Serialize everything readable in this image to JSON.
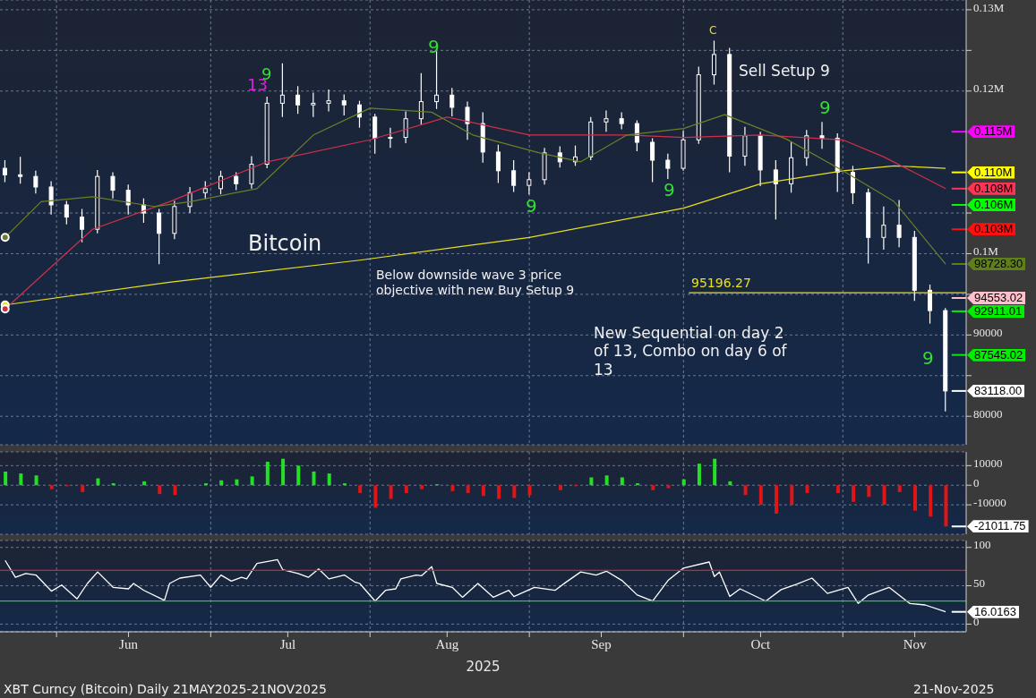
{
  "chart_data": [
    {
      "type": "candlestick",
      "color": "#ffffff",
      "xlim": [
        "2025-05-21",
        "2025-11-25"
      ],
      "ylim": [
        76500,
        131200
      ],
      "xticks": [
        {
          "value": "2025-06-01",
          "label": null
        },
        {
          "value": "2025-07-01",
          "label": null
        },
        {
          "value": "2025-08-01",
          "label": null
        },
        {
          "value": "2025-09-01",
          "label": null
        },
        {
          "value": "2025-10-01",
          "label": null
        },
        {
          "value": "2025-11-01",
          "label": null
        }
      ],
      "yticks": [
        80000,
        {
          "value": 85000,
          "label": null
        },
        90000,
        {
          "value": 95000,
          "label": null
        },
        {
          "value": 100000,
          "label": "0.1M"
        },
        {
          "value": 105000,
          "label": null
        },
        {
          "value": 120000,
          "label": "0.12M"
        },
        {
          "value": 125000,
          "label": null
        },
        {
          "value": 130000,
          "label": "0.13M"
        }
      ],
      "tick_labels": "y",
      "grid": true,
      "x": [
        "2025-05-22",
        "2025-05-25",
        "2025-05-28",
        "2025-05-31",
        "2025-06-03",
        "2025-06-06",
        "2025-06-09",
        "2025-06-12",
        "2025-06-15",
        "2025-06-18",
        "2025-06-21",
        "2025-06-24",
        "2025-06-27",
        "2025-06-30",
        "2025-07-03",
        "2025-07-06",
        "2025-07-09",
        "2025-07-12",
        "2025-07-15",
        "2025-07-18",
        "2025-07-21",
        "2025-07-24",
        "2025-07-27",
        "2025-07-30",
        "2025-08-02",
        "2025-08-05",
        "2025-08-08",
        "2025-08-11",
        "2025-08-14",
        "2025-08-17",
        "2025-08-20",
        "2025-08-23",
        "2025-08-26",
        "2025-08-29",
        "2025-09-01",
        "2025-09-04",
        "2025-09-07",
        "2025-09-10",
        "2025-09-13",
        "2025-09-16",
        "2025-09-19",
        "2025-09-22",
        "2025-09-25",
        "2025-09-28",
        "2025-10-01",
        "2025-10-04",
        "2025-10-07",
        "2025-10-10",
        "2025-10-13",
        "2025-10-16",
        "2025-10-19",
        "2025-10-22",
        "2025-10-25",
        "2025-10-28",
        "2025-10-31",
        "2025-11-03",
        "2025-11-06",
        "2025-11-09",
        "2025-11-12",
        "2025-11-15",
        "2025-11-18",
        "2025-11-21"
      ],
      "ohlc": [
        [
          110500,
          111500,
          108800,
          109700
        ],
        [
          109700,
          111900,
          108600,
          109500
        ],
        [
          109500,
          110200,
          107400,
          108200
        ],
        [
          108200,
          108900,
          104800,
          106000
        ],
        [
          106000,
          106500,
          103600,
          104500
        ],
        [
          104500,
          105500,
          101400,
          103000
        ],
        [
          103000,
          110300,
          102500,
          109500
        ],
        [
          109500,
          110000,
          106800,
          107800
        ],
        [
          107800,
          108500,
          104800,
          106000
        ],
        [
          106000,
          106800,
          103800,
          105000
        ],
        [
          105000,
          105500,
          98700,
          102500
        ],
        [
          102500,
          106500,
          101800,
          105800
        ],
        [
          105800,
          108200,
          105000,
          107500
        ],
        [
          107500,
          108900,
          106700,
          108000
        ],
        [
          108000,
          110200,
          107300,
          109500
        ],
        [
          109500,
          110000,
          107800,
          108600
        ],
        [
          108600,
          112000,
          108000,
          111000
        ],
        [
          111000,
          119300,
          110500,
          118500
        ],
        [
          118500,
          123400,
          116800,
          119500
        ],
        [
          119500,
          120600,
          117200,
          118300
        ],
        [
          118300,
          119800,
          116800,
          118500
        ],
        [
          118500,
          120200,
          117500,
          118800
        ],
        [
          118800,
          119600,
          117000,
          118300
        ],
        [
          118300,
          118800,
          115500,
          116800
        ],
        [
          116800,
          117200,
          112300,
          114200
        ],
        [
          114200,
          115500,
          113000,
          114300
        ],
        [
          114300,
          117500,
          113600,
          116600
        ],
        [
          116600,
          122200,
          115800,
          118700
        ],
        [
          118700,
          124900,
          117800,
          119500
        ],
        [
          119500,
          120400,
          116900,
          118000
        ],
        [
          118000,
          118700,
          114000,
          116000
        ],
        [
          116000,
          117400,
          111200,
          112500
        ],
        [
          112500,
          113400,
          108700,
          110200
        ],
        [
          110200,
          111500,
          107600,
          108400
        ],
        [
          108400,
          110000,
          107300,
          109100
        ],
        [
          109100,
          113000,
          108500,
          112400
        ],
        [
          112400,
          113200,
          110600,
          111300
        ],
        [
          111300,
          113300,
          110800,
          111900
        ],
        [
          111900,
          116800,
          111500,
          116200
        ],
        [
          116200,
          117600,
          115000,
          116600
        ],
        [
          116600,
          117400,
          115300,
          116000
        ],
        [
          116000,
          116400,
          112600,
          113700
        ],
        [
          113700,
          114200,
          108800,
          111500
        ],
        [
          111500,
          112300,
          109200,
          110500
        ],
        [
          110500,
          115100,
          110200,
          114000
        ],
        [
          114000,
          123000,
          113500,
          122000
        ],
        [
          122000,
          126200,
          120800,
          124500
        ],
        [
          124500,
          125300,
          110000,
          112000
        ],
        [
          112000,
          115600,
          110800,
          114500
        ],
        [
          114500,
          115000,
          108300,
          110300
        ],
        [
          110300,
          111500,
          104200,
          108600
        ],
        [
          108600,
          113800,
          107500,
          111800
        ],
        [
          111800,
          115200,
          110800,
          114500
        ],
        [
          114500,
          116200,
          112900,
          114200
        ],
        [
          114200,
          114800,
          107600,
          110000
        ],
        [
          110000,
          110800,
          106100,
          107500
        ],
        [
          107500,
          108000,
          98800,
          102000
        ],
        [
          102000,
          105800,
          100500,
          103500
        ],
        [
          103500,
          106600,
          100800,
          102000
        ],
        [
          102000,
          102800,
          94200,
          95500
        ],
        [
          95500,
          96200,
          91400,
          93000
        ],
        [
          93000,
          93300,
          80600,
          83118
        ]
      ],
      "series": [
        {
          "type": "line",
          "color": "#e8e020",
          "x": [
            "2025-05-22",
            "2025-06-23",
            "2025-07-30",
            "2025-09-01",
            "2025-10-01",
            "2025-10-16",
            "2025-11-01",
            "2025-11-11",
            "2025-11-21"
          ],
          "values": [
            93700,
            96500,
            99200,
            102000,
            105600,
            108600,
            110200,
            110800,
            110500
          ]
        },
        {
          "type": "line",
          "color": "#d0304a",
          "x": [
            "2025-05-22",
            "2025-06-08",
            "2025-06-23",
            "2025-07-12",
            "2025-08-01",
            "2025-08-16",
            "2025-09-01",
            "2025-09-20",
            "2025-10-01",
            "2025-10-16",
            "2025-11-01",
            "2025-11-09",
            "2025-11-21"
          ],
          "values": [
            93200,
            103000,
            106400,
            111300,
            114000,
            116800,
            114600,
            114600,
            114300,
            114600,
            114000,
            111900,
            108000
          ]
        },
        {
          "type": "line",
          "color": "#6b7f2a",
          "x": [
            "2025-05-22",
            "2025-05-29",
            "2025-06-08",
            "2025-06-20",
            "2025-06-27",
            "2025-07-10",
            "2025-07-21",
            "2025-08-01",
            "2025-08-13",
            "2025-08-21",
            "2025-09-03",
            "2025-09-11",
            "2025-09-20",
            "2025-10-01",
            "2025-10-09",
            "2025-10-21",
            "2025-11-01",
            "2025-11-11",
            "2025-11-21"
          ],
          "values": [
            102000,
            106400,
            107000,
            105800,
            106400,
            108000,
            114600,
            117900,
            117400,
            114600,
            112400,
            111300,
            114600,
            115400,
            117100,
            114100,
            110200,
            106400,
            98728.3
          ]
        }
      ],
      "ref_lines": [
        {
          "axis": "y",
          "value": 95196.27,
          "label": "95196.27",
          "color": "#e8e020",
          "line_style": "solid"
        },
        {
          "axis": "y",
          "value": 115000,
          "label": "0.115M",
          "color": "#ff00ff"
        },
        {
          "axis": "y",
          "value": 110000,
          "label": "0.110M",
          "color": "#ffff00"
        },
        {
          "axis": "y",
          "value": 108000,
          "label": "0.108M",
          "color": "#ff3355"
        },
        {
          "axis": "y",
          "value": 106000,
          "label": "0.106M",
          "color": "#00ff00"
        },
        {
          "axis": "y",
          "value": 103000,
          "label": "0.103M",
          "color": "#ff1010"
        },
        {
          "axis": "y",
          "value": 98728.3,
          "label": "98728.30",
          "color": "#5f7f1a"
        },
        {
          "axis": "y",
          "value": 94553.02,
          "label": "94553.02",
          "color": "#ffc0cb"
        },
        {
          "axis": "y",
          "value": 92911.01,
          "label": "92911.01",
          "color": "#00ee00"
        },
        {
          "axis": "y",
          "value": 87545.02,
          "label": "87545.02",
          "color": "#00ee00"
        },
        {
          "axis": "y",
          "value": 83118,
          "label": "83118.00",
          "color": "#ffffff"
        }
      ],
      "annotations": [
        "Bitcoin",
        "Below downside wave 3 price objective with new Buy Setup 9",
        "New Sequential on day 2 of 13, Combo on day 6 of 13",
        "Sell Setup 9",
        "13",
        "9",
        "9",
        "9",
        "9",
        "C",
        "9",
        "9"
      ]
    },
    {
      "type": "bar",
      "xlim": [
        "2025-05-21",
        "2025-11-25"
      ],
      "ylim": [
        -25000,
        17000
      ],
      "yticks": [
        -10000,
        0,
        10000
      ],
      "tick_labels": "y",
      "grid": true,
      "xticks": [
        {
          "value": "2025-06-01",
          "label": null
        },
        {
          "value": "2025-07-01",
          "label": null
        },
        {
          "value": "2025-08-01",
          "label": null
        },
        {
          "value": "2025-09-01",
          "label": null
        },
        {
          "value": "2025-10-01",
          "label": null
        },
        {
          "value": "2025-11-01",
          "label": null
        }
      ],
      "x": [
        "2025-05-22",
        "2025-05-25",
        "2025-05-28",
        "2025-05-31",
        "2025-06-03",
        "2025-06-06",
        "2025-06-09",
        "2025-06-12",
        "2025-06-15",
        "2025-06-18",
        "2025-06-21",
        "2025-06-24",
        "2025-06-27",
        "2025-06-30",
        "2025-07-03",
        "2025-07-06",
        "2025-07-09",
        "2025-07-12",
        "2025-07-15",
        "2025-07-18",
        "2025-07-21",
        "2025-07-24",
        "2025-07-27",
        "2025-07-30",
        "2025-08-02",
        "2025-08-05",
        "2025-08-08",
        "2025-08-11",
        "2025-08-14",
        "2025-08-17",
        "2025-08-20",
        "2025-08-23",
        "2025-08-26",
        "2025-08-29",
        "2025-09-01",
        "2025-09-04",
        "2025-09-07",
        "2025-09-10",
        "2025-09-13",
        "2025-09-16",
        "2025-09-19",
        "2025-09-22",
        "2025-09-25",
        "2025-09-28",
        "2025-10-01",
        "2025-10-04",
        "2025-10-07",
        "2025-10-10",
        "2025-10-13",
        "2025-10-16",
        "2025-10-19",
        "2025-10-22",
        "2025-10-25",
        "2025-10-28",
        "2025-10-31",
        "2025-11-03",
        "2025-11-06",
        "2025-11-09",
        "2025-11-12",
        "2025-11-15",
        "2025-11-18",
        "2025-11-21"
      ],
      "values": [
        7000,
        6000,
        5000,
        -2000,
        -500,
        -3500,
        3500,
        1000,
        0,
        2000,
        -4500,
        -5000,
        0,
        1000,
        2500,
        3000,
        4500,
        12000,
        13500,
        10000,
        7000,
        6000,
        1000,
        -4000,
        -11500,
        -7000,
        -4000,
        -2000,
        500,
        -3000,
        -4000,
        -5500,
        -7000,
        -6500,
        -5000,
        0,
        -2500,
        -500,
        4000,
        5000,
        4000,
        1000,
        -2500,
        -1500,
        3000,
        11000,
        13500,
        2000,
        -5000,
        -10000,
        -14500,
        -10000,
        -4000,
        0,
        -4000,
        -8500,
        -6000,
        -10000,
        -3500,
        -13000,
        -16000,
        -21011.75
      ],
      "colors": [
        "#22e022",
        "#22e022",
        "#22e022",
        "#e01515",
        "#e01515",
        "#e01515",
        "#22e022",
        "#22e022",
        "#22e022",
        "#22e022",
        "#e01515",
        "#e01515",
        "#22e022",
        "#22e022",
        "#22e022",
        "#22e022",
        "#22e022",
        "#22e022",
        "#22e022",
        "#22e022",
        "#22e022",
        "#22e022",
        "#22e022",
        "#e01515",
        "#e01515",
        "#e01515",
        "#e01515",
        "#e01515",
        "#22e022",
        "#e01515",
        "#e01515",
        "#e01515",
        "#e01515",
        "#e01515",
        "#e01515",
        "#22e022",
        "#e01515",
        "#e01515",
        "#22e022",
        "#22e022",
        "#22e022",
        "#22e022",
        "#e01515",
        "#e01515",
        "#22e022",
        "#22e022",
        "#22e022",
        "#22e022",
        "#e01515",
        "#e01515",
        "#e01515",
        "#e01515",
        "#e01515",
        "#22e022",
        "#e01515",
        "#e01515",
        "#e01515",
        "#e01515",
        "#e01515",
        "#e01515",
        "#e01515",
        "#e01515"
      ],
      "ref_lines": [
        {
          "axis": "y",
          "value": -21011.75,
          "label": "-21011.75",
          "color": "#ffffff"
        }
      ]
    },
    {
      "type": "line",
      "color": "#ffffff",
      "xlim": [
        "2025-05-21",
        "2025-11-25"
      ],
      "ylim": [
        -10,
        109
      ],
      "yticks": [
        0,
        50,
        100
      ],
      "grid": true,
      "xlabel": "2025",
      "xticks": [
        {
          "value": "2025-06-01",
          "label": null
        },
        {
          "value": "2025-06-15",
          "label": "Jun"
        },
        {
          "value": "2025-07-01",
          "label": null
        },
        {
          "value": "2025-07-16",
          "label": "Jul"
        },
        {
          "value": "2025-08-01",
          "label": null
        },
        {
          "value": "2025-08-16",
          "label": "Aug"
        },
        {
          "value": "2025-09-01",
          "label": null
        },
        {
          "value": "2025-09-15",
          "label": "Sep"
        },
        {
          "value": "2025-10-01",
          "label": null
        },
        {
          "value": "2025-10-16",
          "label": "Oct"
        },
        {
          "value": "2025-11-01",
          "label": null
        },
        {
          "value": "2025-11-15",
          "label": "Nov"
        }
      ],
      "x": [
        "2025-05-22",
        "2025-05-24",
        "2025-05-26",
        "2025-05-28",
        "2025-05-31",
        "2025-06-02",
        "2025-06-05",
        "2025-06-07",
        "2025-06-09",
        "2025-06-12",
        "2025-06-15",
        "2025-06-16",
        "2025-06-18",
        "2025-06-22",
        "2025-06-23",
        "2025-06-25",
        "2025-06-29",
        "2025-07-01",
        "2025-07-03",
        "2025-07-05",
        "2025-07-07",
        "2025-07-08",
        "2025-07-10",
        "2025-07-14",
        "2025-07-15",
        "2025-07-18",
        "2025-07-20",
        "2025-07-22",
        "2025-07-24",
        "2025-07-27",
        "2025-07-29",
        "2025-07-30",
        "2025-08-02",
        "2025-08-04",
        "2025-08-06",
        "2025-08-07",
        "2025-08-10",
        "2025-08-11",
        "2025-08-13",
        "2025-08-14",
        "2025-08-17",
        "2025-08-19",
        "2025-08-22",
        "2025-08-25",
        "2025-08-28",
        "2025-08-29",
        "2025-09-02",
        "2025-09-06",
        "2025-09-08",
        "2025-09-11",
        "2025-09-14",
        "2025-09-16",
        "2025-09-19",
        "2025-09-22",
        "2025-09-25",
        "2025-09-28",
        "2025-10-01",
        "2025-10-06",
        "2025-10-07",
        "2025-10-08",
        "2025-10-10",
        "2025-10-12",
        "2025-10-17",
        "2025-10-20",
        "2025-10-23",
        "2025-10-26",
        "2025-10-29",
        "2025-11-02",
        "2025-11-04",
        "2025-11-06",
        "2025-11-10",
        "2025-11-14",
        "2025-11-17",
        "2025-11-21"
      ],
      "values": [
        83,
        61,
        66,
        64,
        43,
        51,
        33,
        53,
        68,
        48,
        46,
        53,
        44,
        31,
        53,
        60,
        64,
        48,
        64,
        56,
        61,
        59,
        79,
        84,
        71,
        66,
        61,
        72,
        59,
        64,
        55,
        53,
        30,
        44,
        46,
        59,
        64,
        63,
        75,
        53,
        48,
        35,
        53,
        35,
        44,
        36,
        48,
        44,
        54,
        68,
        64,
        69,
        57,
        38,
        30,
        57,
        73,
        81,
        62,
        68,
        36,
        46,
        30,
        45,
        52,
        60,
        40,
        48,
        27,
        38,
        48,
        27,
        25,
        16.0163
      ],
      "ref_lines": [
        {
          "axis": "y",
          "value": 70,
          "color": "#e02020",
          "line_style": "solid"
        },
        {
          "axis": "y",
          "value": 30,
          "color": "#20d020",
          "line_style": "solid"
        },
        {
          "axis": "y",
          "value": 16.0163,
          "label": "16.0163",
          "color": "#ffffff"
        }
      ],
      "annotations": [
        "XBT Curncy (Bitcoin) Daily 21MAY2025-21NOV2025",
        "21-Nov-2025 07:59:46"
      ]
    }
  ]
}
